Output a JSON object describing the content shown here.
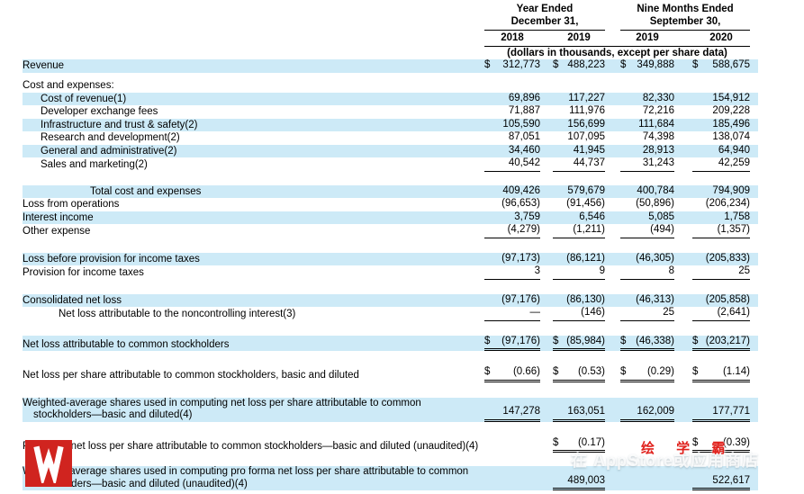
{
  "colors": {
    "highlight_band": "#cdeaf7",
    "rule": "#000000",
    "watermark_red": "#d0241f"
  },
  "header": {
    "groups": [
      {
        "line1": "Year Ended",
        "line2": "December 31,",
        "years": [
          "2018",
          "2019"
        ]
      },
      {
        "line1": "Nine Months Ended",
        "line2": "September 30,",
        "years": [
          "2019",
          "2020"
        ]
      }
    ],
    "units_note": "(dollars in thousands, except per share data)"
  },
  "rows": [
    {
      "label": "Revenue",
      "hl": true,
      "cells": [
        [
          "$",
          "312,773",
          0
        ],
        [
          "$",
          "488,223",
          0
        ],
        [
          "$",
          "349,888",
          0
        ],
        [
          "$",
          "588,675",
          0
        ]
      ]
    },
    {
      "label": "Cost and expenses:",
      "sp": 8
    },
    {
      "label": "Cost of revenue(1)",
      "ind": 1,
      "hl": true,
      "cells": [
        [
          "",
          "69,896",
          0
        ],
        [
          "",
          "117,227",
          0
        ],
        [
          "",
          "82,330",
          0
        ],
        [
          "",
          "154,912",
          0
        ]
      ]
    },
    {
      "label": "Developer exchange fees",
      "ind": 1,
      "cells": [
        [
          "",
          "71,887",
          0
        ],
        [
          "",
          "111,976",
          0
        ],
        [
          "",
          "72,216",
          0
        ],
        [
          "",
          "209,228",
          0
        ]
      ]
    },
    {
      "label": "Infrastructure and trust & safety(2)",
      "ind": 1,
      "hl": true,
      "cells": [
        [
          "",
          "105,590",
          0
        ],
        [
          "",
          "156,699",
          0
        ],
        [
          "",
          "111,684",
          0
        ],
        [
          "",
          "185,496",
          0
        ]
      ]
    },
    {
      "label": "Research and development(2)",
      "ind": 1,
      "cells": [
        [
          "",
          "87,051",
          0
        ],
        [
          "",
          "107,095",
          0
        ],
        [
          "",
          "74,398",
          0
        ],
        [
          "",
          "138,074",
          0
        ]
      ]
    },
    {
      "label": "General and administrative(2)",
      "ind": 1,
      "hl": true,
      "cells": [
        [
          "",
          "34,460",
          0
        ],
        [
          "",
          "41,945",
          0
        ],
        [
          "",
          "28,913",
          0
        ],
        [
          "",
          "64,940",
          0
        ]
      ]
    },
    {
      "label": "Sales and marketing(2)",
      "ind": 1,
      "cells": [
        [
          "",
          "40,542",
          1
        ],
        [
          "",
          "44,737",
          1
        ],
        [
          "",
          "31,243",
          1
        ],
        [
          "",
          "42,259",
          1
        ]
      ]
    },
    {
      "label": "Total cost and expenses",
      "ind": 3,
      "hl": true,
      "sp": 15,
      "cells": [
        [
          "",
          "409,426",
          0
        ],
        [
          "",
          "579,679",
          0
        ],
        [
          "",
          "400,784",
          0
        ],
        [
          "",
          "794,909",
          0
        ]
      ]
    },
    {
      "label": "Loss from operations",
      "cells": [
        [
          "",
          "(96,653)",
          0
        ],
        [
          "",
          "(91,456)",
          0
        ],
        [
          "",
          "(50,896)",
          0
        ],
        [
          "",
          "(206,234)",
          0
        ]
      ]
    },
    {
      "label": "Interest income",
      "hl": true,
      "cells": [
        [
          "",
          "3,759",
          0
        ],
        [
          "",
          "6,546",
          0
        ],
        [
          "",
          "5,085",
          0
        ],
        [
          "",
          "1,758",
          0
        ]
      ]
    },
    {
      "label": "Other expense",
      "cells": [
        [
          "",
          "(4,279)",
          1
        ],
        [
          "",
          "(1,211)",
          1
        ],
        [
          "",
          "(494)",
          1
        ],
        [
          "",
          "(1,357)",
          1
        ]
      ]
    },
    {
      "label": "Loss before provision for income taxes",
      "hl": true,
      "sp": 16,
      "cells": [
        [
          "",
          "(97,173)",
          0
        ],
        [
          "",
          "(86,121)",
          0
        ],
        [
          "",
          "(46,305)",
          0
        ],
        [
          "",
          "(205,833)",
          0
        ]
      ]
    },
    {
      "label": "Provision for income taxes",
      "cells": [
        [
          "",
          "3",
          1
        ],
        [
          "",
          "9",
          1
        ],
        [
          "",
          "8",
          1
        ],
        [
          "",
          "25",
          1
        ]
      ]
    },
    {
      "label": "Consolidated net loss",
      "hl": true,
      "sp": 16,
      "cells": [
        [
          "",
          "(97,176)",
          0
        ],
        [
          "",
          "(86,130)",
          0
        ],
        [
          "",
          "(46,313)",
          0
        ],
        [
          "",
          "(205,858)",
          0
        ]
      ]
    },
    {
      "label": "Net loss attributable to the noncontrolling interest(3)",
      "ind": 2,
      "cells": [
        [
          "",
          "—",
          1
        ],
        [
          "",
          "(146)",
          1
        ],
        [
          "",
          "25",
          1
        ],
        [
          "",
          "(2,641)",
          1
        ]
      ]
    },
    {
      "label": "Net loss attributable to common stockholders",
      "hl": true,
      "sp": 16,
      "cells": [
        [
          "$",
          "(97,176)",
          2
        ],
        [
          "$",
          "(85,984)",
          2
        ],
        [
          "$",
          "(46,338)",
          2
        ],
        [
          "$",
          "(203,217)",
          2
        ]
      ]
    },
    {
      "label": "Net loss per share attributable to common stockholders, basic and diluted",
      "sp": 17,
      "cells": [
        [
          "$",
          "(0.66)",
          2
        ],
        [
          "$",
          "(0.53)",
          2
        ],
        [
          "$",
          "(0.29)",
          2
        ],
        [
          "$",
          "(1.14)",
          2
        ]
      ]
    },
    {
      "label": "Weighted-average shares used in computing net loss per share attributable to common stockholders—basic and diluted(4)",
      "hl": true,
      "sp": 17,
      "cells": [
        [
          "",
          "147,278",
          2
        ],
        [
          "",
          "163,051",
          2
        ],
        [
          "",
          "162,009",
          2
        ],
        [
          "",
          "177,771",
          2
        ]
      ]
    },
    {
      "label": "Pro forma net loss per share attributable to common stockholders—basic and diluted (unaudited)(4)",
      "sp": 17,
      "cells": [
        [
          "",
          "",
          0
        ],
        [
          "$",
          "(0.17)",
          2
        ],
        [
          "",
          "",
          0
        ],
        [
          "$",
          "(0.39)",
          2
        ]
      ]
    },
    {
      "label": "Weighted-average shares used in computing pro forma net loss per share attributable to common stockholders—basic and diluted (unaudited)(4)",
      "hl": true,
      "sp": 15,
      "cells": [
        [
          "",
          "",
          0
        ],
        [
          "",
          "489,003",
          2
        ],
        [
          "",
          "",
          0
        ],
        [
          "",
          "522,617",
          2
        ]
      ]
    }
  ],
  "watermark": {
    "brand": "绘 学 霸",
    "store_line": "在 AppStore或应用商店",
    "logo_glyph": "W"
  }
}
